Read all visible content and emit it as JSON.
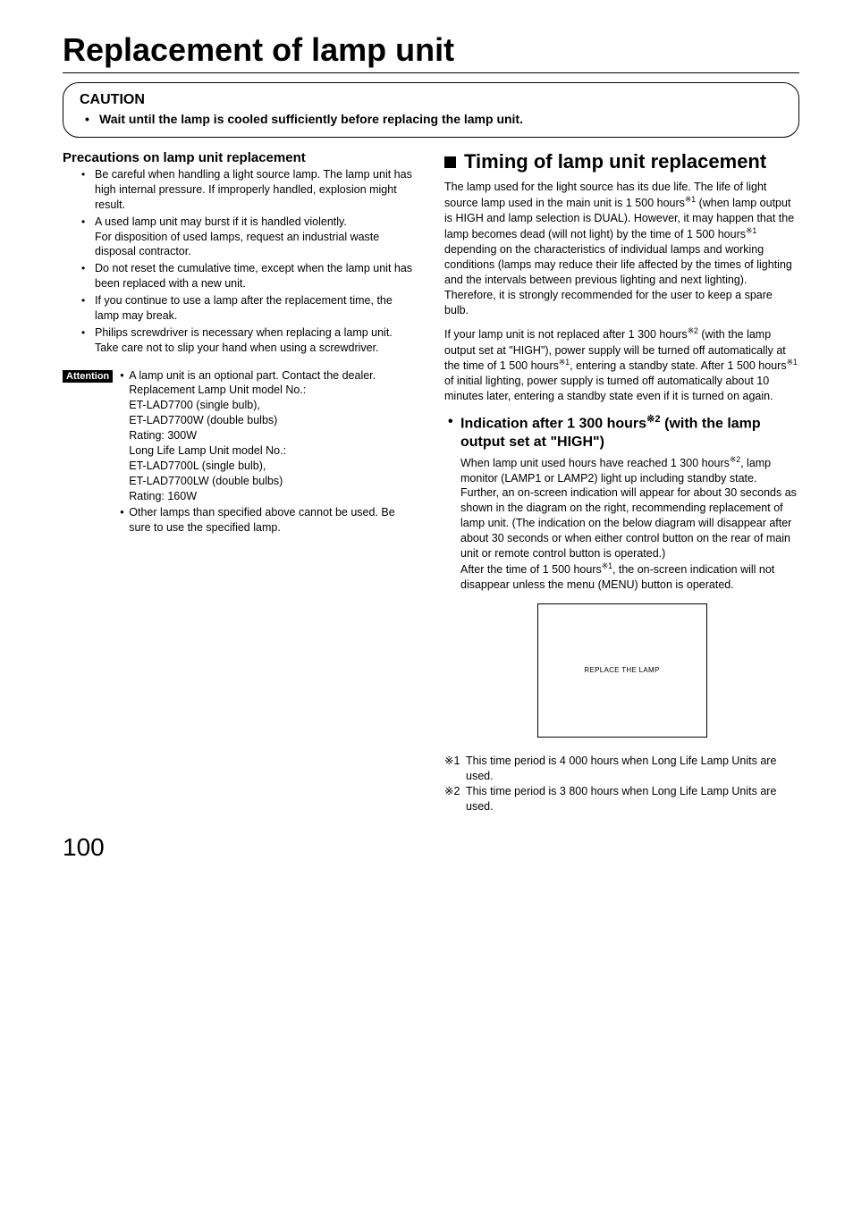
{
  "page": {
    "title": "Replacement of lamp unit",
    "number": "100"
  },
  "caution": {
    "heading": "CAUTION",
    "text": "Wait until the lamp is cooled sufficiently before replacing the lamp unit."
  },
  "precautions": {
    "heading": "Precautions on lamp unit replacement",
    "items": [
      "Be careful when handling a light source lamp. The lamp unit has high internal pressure. If improperly handled, explosion might result.",
      "A used lamp unit may burst if it is handled violently.\nFor disposition of used lamps, request an industrial waste disposal contractor.",
      "Do not reset the cumulative time, except when the lamp unit has been replaced with a new unit.",
      "If you continue to use a lamp after the replacement time, the lamp may break.",
      "Philips screwdriver is necessary when replacing a lamp unit.\nTake care not to slip your hand when using a screwdriver."
    ]
  },
  "attention": {
    "label": "Attention",
    "items": [
      "A lamp unit is an optional part.  Contact the dealer.\nReplacement Lamp Unit model No.:\nET-LAD7700 (single bulb),\nET-LAD7700W (double bulbs)\nRating: 300W\nLong Life Lamp Unit model No.:\nET-LAD7700L (single bulb),\nET-LAD7700LW (double bulbs)\nRating: 160W",
      "Other lamps than specified above cannot be used.  Be sure to use the specified lamp."
    ]
  },
  "timing": {
    "title": "Timing of lamp unit replacement",
    "para1_a": "The lamp used for the light source has its due life.  The life of light source lamp used in the main unit is 1 500 hours",
    "para1_b": " (when lamp output is HIGH and lamp selection is DUAL). However, it may happen that the lamp becomes dead (will not light) by the time of 1 500 hours",
    "para1_c": " depending on the characteristics of individual lamps and working conditions (lamps may reduce their life affected by the times of lighting and the intervals between previous lighting and next lighting). Therefore, it is strongly recommended for the user to keep a spare bulb.",
    "para2_a": "If your lamp unit is not replaced after 1 300 hours",
    "para2_b": " (with the lamp output set at \"HIGH\"), power supply will be turned off automatically at the time of 1 500 hours",
    "para2_c": ", entering a standby state.  After 1 500 hours",
    "para2_d": " of initial lighting, power supply is turned off automatically about 10 minutes later, entering a standby state even if it is turned on again.",
    "sub_title_a": "Indication after 1 300 hours",
    "sub_title_b": " (with the lamp output set at \"HIGH\")",
    "subpara_a": "When lamp unit used hours have reached 1 300 hours",
    "subpara_b": ", lamp monitor (LAMP1 or LAMP2) light up including standby state.",
    "subpara_c": "Further, an on-screen indication will appear for about 30 seconds as shown in the diagram on the right, recommending replacement of lamp unit. (The indication on the below diagram will disappear after about 30 seconds or when either control button on the rear of main unit or remote control button is operated.)",
    "subpara_d": "After the time of 1 500 hours",
    "subpara_e": ", the on-screen indication will not disappear unless the menu (MENU) button is operated."
  },
  "osd": {
    "text": "REPLACE THE LAMP"
  },
  "notes": {
    "n1_marker": "※1",
    "n1": "This time period is 4 000 hours when Long Life Lamp Units are used.",
    "n2_marker": "※2",
    "n2": "This time period is 3 800 hours when Long Life Lamp Units are used."
  },
  "sup": {
    "s1": "※1",
    "s2": "※2"
  }
}
